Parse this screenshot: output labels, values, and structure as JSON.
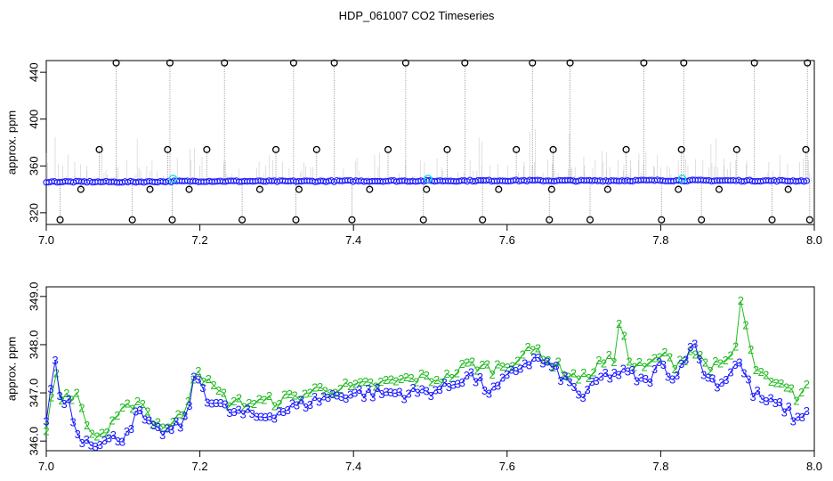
{
  "title": "HDP_061007  CO2 Timeseries",
  "colors": {
    "blue": "#1a1aff",
    "green": "#22bb22",
    "gray": "#999999",
    "black": "#000000",
    "cyan": "#22dddd"
  },
  "chart_data": [
    {
      "type": "scatter",
      "ylabel": "approx. ppm",
      "xlim": [
        7.0,
        8.0
      ],
      "ylim": [
        310,
        450
      ],
      "x_ticks": [
        "7.0",
        "7.2",
        "7.4",
        "7.6",
        "7.8",
        "8.0"
      ],
      "y_ticks": [
        "320",
        "360",
        "400",
        "440"
      ],
      "series": [
        {
          "marker": "blue-circle",
          "x": [
            7.0,
            7.1,
            7.2,
            7.3,
            7.4,
            7.5,
            7.6,
            7.7,
            7.8,
            7.9,
            8.0
          ],
          "y": [
            346.5,
            346.3,
            347.0,
            346.8,
            347.1,
            347.2,
            347.5,
            347.3,
            347.6,
            347.4,
            347.2
          ]
        },
        {
          "marker": "black-circle-outliers",
          "x": [
            7.018,
            7.045,
            7.069,
            7.091,
            7.112,
            7.135,
            7.158,
            7.161,
            7.164,
            7.186,
            7.209,
            7.232,
            7.255,
            7.278,
            7.299,
            7.322,
            7.325,
            7.329,
            7.352,
            7.375,
            7.398,
            7.421,
            7.445,
            7.468,
            7.491,
            7.495,
            7.522,
            7.545,
            7.568,
            7.589,
            7.612,
            7.633,
            7.655,
            7.658,
            7.66,
            7.682,
            7.708,
            7.731,
            7.755,
            7.778,
            7.801,
            7.823,
            7.827,
            7.83,
            7.853,
            7.876,
            7.899,
            7.922,
            7.945,
            7.966,
            7.989,
            7.991,
            7.994
          ],
          "y": [
            314,
            340,
            374,
            448,
            314,
            340,
            374,
            448,
            314,
            340,
            374,
            448,
            314,
            340,
            374,
            448,
            314,
            340,
            374,
            448,
            314,
            340,
            374,
            448,
            314,
            340,
            374,
            448,
            314,
            340,
            374,
            448,
            314,
            340,
            374,
            448,
            314,
            340,
            374,
            448,
            314,
            340,
            374,
            448,
            314,
            340,
            374,
            448,
            314,
            340,
            374,
            448,
            314
          ]
        },
        {
          "marker": "cyan-circle",
          "x": [
            7.165,
            7.497,
            7.828
          ],
          "y": [
            349,
            349,
            349
          ]
        }
      ]
    },
    {
      "type": "line",
      "ylabel": "approx. ppm",
      "xlim": [
        7.0,
        8.0
      ],
      "ylim": [
        345.8,
        349.2
      ],
      "x_ticks": [
        "7.0",
        "7.2",
        "7.4",
        "7.6",
        "7.8",
        "8.0"
      ],
      "y_ticks": [
        "346.0",
        "347.0",
        "348.0",
        "349.0"
      ],
      "series": [
        {
          "label": "3",
          "x": [
            7.0,
            7.01,
            7.02,
            7.03,
            7.04,
            7.06,
            7.08,
            7.1,
            7.12,
            7.14,
            7.16,
            7.18,
            7.195,
            7.21,
            7.24,
            7.28,
            7.32,
            7.36,
            7.4,
            7.44,
            7.48,
            7.52,
            7.55,
            7.58,
            7.6,
            7.62,
            7.64,
            7.66,
            7.68,
            7.7,
            7.72,
            7.74,
            7.76,
            7.78,
            7.8,
            7.82,
            7.84,
            7.86,
            7.88,
            7.9,
            7.92,
            7.94,
            7.96,
            7.98,
            7.99
          ],
          "y": [
            346.3,
            347.8,
            346.7,
            346.9,
            346.1,
            346.0,
            346.0,
            346.1,
            346.6,
            346.2,
            346.2,
            346.4,
            347.4,
            346.9,
            346.6,
            346.5,
            346.7,
            346.9,
            347.0,
            347.0,
            347.0,
            347.1,
            347.4,
            347.0,
            347.3,
            347.6,
            347.7,
            347.5,
            347.2,
            346.9,
            347.3,
            347.4,
            347.4,
            347.2,
            347.6,
            347.3,
            348.1,
            347.3,
            347.2,
            347.7,
            347.0,
            346.8,
            346.7,
            346.4,
            346.7
          ]
        },
        {
          "label": "2",
          "x": [
            7.0,
            7.01,
            7.02,
            7.03,
            7.04,
            7.06,
            7.08,
            7.1,
            7.12,
            7.14,
            7.16,
            7.18,
            7.195,
            7.21,
            7.24,
            7.28,
            7.32,
            7.36,
            7.4,
            7.44,
            7.48,
            7.52,
            7.55,
            7.58,
            7.6,
            7.62,
            7.64,
            7.66,
            7.68,
            7.7,
            7.72,
            7.74,
            7.745,
            7.76,
            7.78,
            7.8,
            7.82,
            7.84,
            7.86,
            7.88,
            7.9,
            7.903,
            7.92,
            7.94,
            7.96,
            7.98,
            7.99
          ],
          "y": [
            346.1,
            347.5,
            346.9,
            347.0,
            346.9,
            346.1,
            346.2,
            346.6,
            346.9,
            346.4,
            346.3,
            346.6,
            347.6,
            347.2,
            346.8,
            346.8,
            346.9,
            347.1,
            347.1,
            347.2,
            347.3,
            347.3,
            347.6,
            347.5,
            347.6,
            347.8,
            347.9,
            347.6,
            347.4,
            347.3,
            347.6,
            347.7,
            348.6,
            347.6,
            347.5,
            347.8,
            347.6,
            347.9,
            347.6,
            347.5,
            348.0,
            349.0,
            347.6,
            347.2,
            347.1,
            346.9,
            347.2
          ]
        }
      ]
    }
  ]
}
